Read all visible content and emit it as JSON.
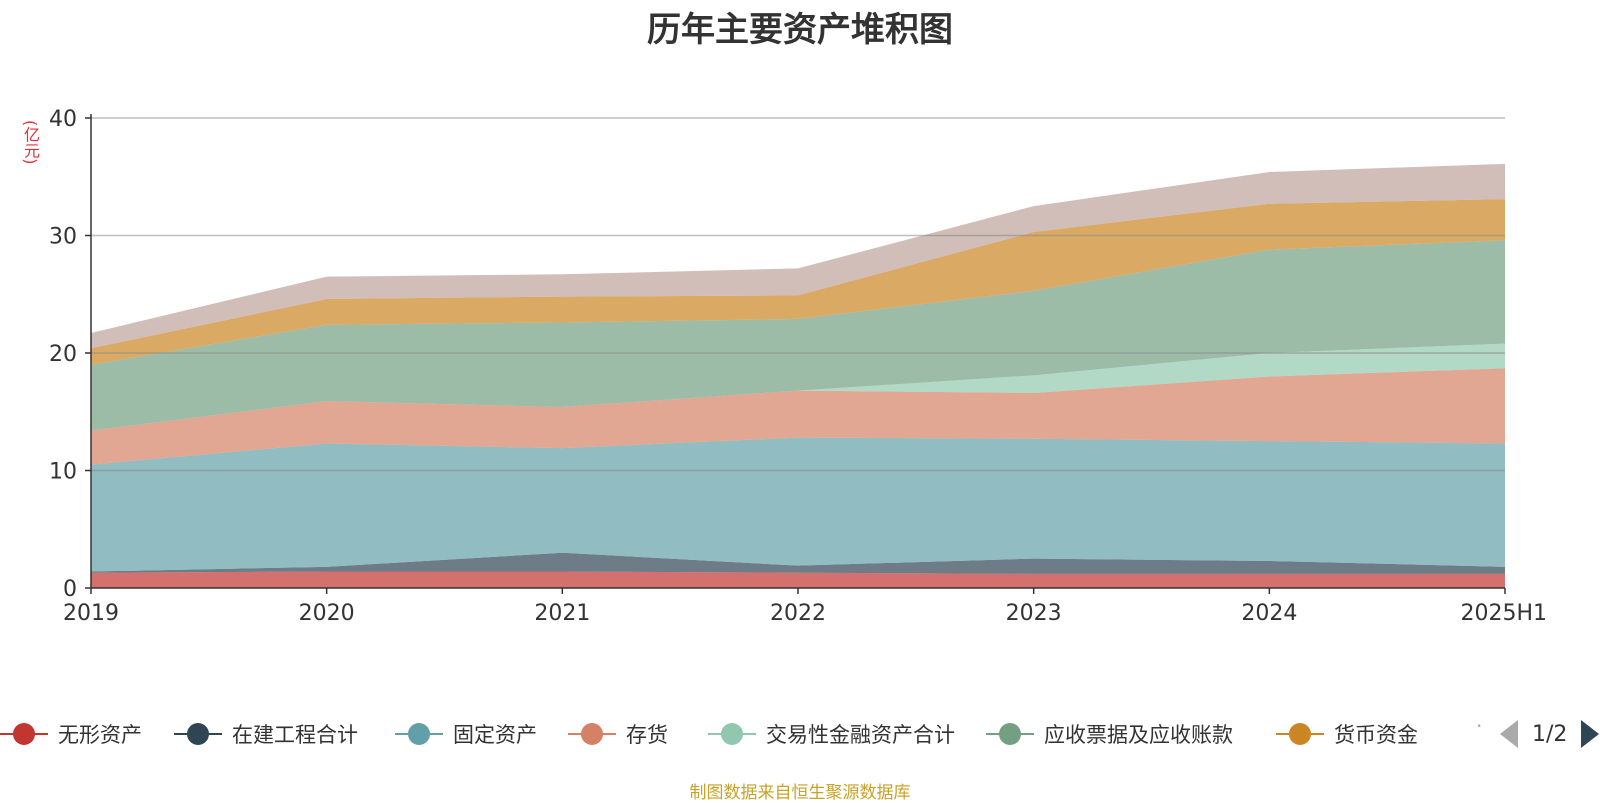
{
  "chart_data": {
    "type": "area",
    "stacked": true,
    "title": "历年主要资产堆积图",
    "ylabel": "(亿元)",
    "xlabel": "",
    "categories": [
      "2019",
      "2020",
      "2021",
      "2022",
      "2023",
      "2024",
      "2025H1"
    ],
    "ylim": [
      0,
      40
    ],
    "yticks": [
      0,
      10,
      20,
      30,
      40
    ],
    "grid": true,
    "series": [
      {
        "name": "无形资产",
        "color": "#c23531",
        "values": [
          1.3,
          1.4,
          1.4,
          1.3,
          1.2,
          1.2,
          1.2
        ]
      },
      {
        "name": "在建工程合计",
        "color": "#2f4554",
        "values": [
          0.1,
          0.4,
          1.6,
          0.6,
          1.3,
          1.1,
          0.6
        ]
      },
      {
        "name": "固定资产",
        "color": "#61a0a8",
        "values": [
          9.1,
          10.5,
          8.9,
          10.9,
          10.2,
          10.2,
          10.5
        ]
      },
      {
        "name": "存货",
        "color": "#d48265",
        "values": [
          2.9,
          3.6,
          3.5,
          4.0,
          3.9,
          5.5,
          6.4
        ]
      },
      {
        "name": "交易性金融资产合计",
        "color": "#91c7ae",
        "values": [
          0,
          0,
          0,
          0,
          1.5,
          2.0,
          2.1
        ]
      },
      {
        "name": "应收票据及应收账款",
        "color": "#749f83",
        "values": [
          5.6,
          6.5,
          7.2,
          6.1,
          7.2,
          8.8,
          8.8
        ]
      },
      {
        "name": "货币资金",
        "color": "#ca8622",
        "values": [
          1.4,
          2.2,
          2.2,
          2.0,
          5.0,
          3.9,
          3.5
        ]
      },
      {
        "name": "",
        "color": "#bda29a",
        "values": [
          1.3,
          1.9,
          1.9,
          2.3,
          2.2,
          2.7,
          3.0
        ]
      }
    ]
  },
  "legend": {
    "items": [
      {
        "label": "无形资产",
        "color": "#c23531"
      },
      {
        "label": "在建工程合计",
        "color": "#2f4554"
      },
      {
        "label": "固定资产",
        "color": "#61a0a8"
      },
      {
        "label": "存货",
        "color": "#d48265"
      },
      {
        "label": "交易性金融资产合计",
        "color": "#91c7ae"
      },
      {
        "label": "应收票据及应收账款",
        "color": "#749f83"
      },
      {
        "label": "货币资金",
        "color": "#ca8622"
      }
    ],
    "pager": "1/2"
  },
  "source": "制图数据来自恒生聚源数据库"
}
